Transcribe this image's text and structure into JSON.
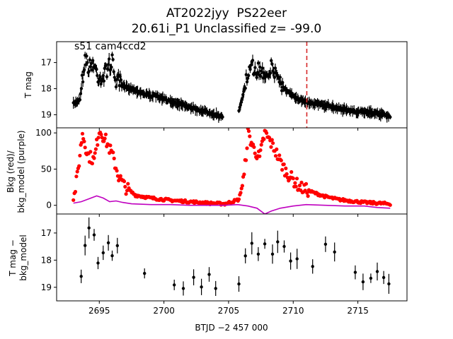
{
  "figure": {
    "title_line1": "AT2022jyy  PS22eer",
    "title_line2": "20.61i_P1 Unclassified z= -99.0",
    "annotation": "s51 cam4ccd2",
    "xlabel": "BTJD −2 457 000",
    "xticks": [
      2695,
      2700,
      2705,
      2710,
      2715
    ],
    "xlim": [
      2691.7,
      2718.8
    ]
  },
  "colors": {
    "black": "#000000",
    "red": "#ff0000",
    "purple": "#bf00bf",
    "marker_line": "#d62728"
  },
  "chart_data": [
    {
      "type": "scatter",
      "name": "tmag",
      "ylabel": "T mag",
      "ylim": [
        19.5,
        16.2
      ],
      "yticks": [
        17,
        18,
        19
      ],
      "marker_x": 2711.05,
      "gap": [
        2704.8,
        2705.7
      ],
      "series": [
        {
          "color": "#000000",
          "points": [
            [
              2693.0,
              18.6
            ],
            [
              2693.5,
              18.4
            ],
            [
              2693.9,
              16.8
            ],
            [
              2694.2,
              17.2
            ],
            [
              2694.5,
              17.0
            ],
            [
              2694.9,
              17.5
            ],
            [
              2695.3,
              17.6
            ],
            [
              2695.7,
              17.1
            ],
            [
              2696.0,
              17.0
            ],
            [
              2696.3,
              17.7
            ],
            [
              2696.8,
              17.9
            ],
            [
              2697.5,
              18.0
            ],
            [
              2698.5,
              18.2
            ],
            [
              2699.5,
              18.3
            ],
            [
              2700.5,
              18.5
            ],
            [
              2701.5,
              18.6
            ],
            [
              2702.5,
              18.8
            ],
            [
              2703.5,
              18.9
            ],
            [
              2704.6,
              19.1
            ],
            [
              2705.8,
              18.9
            ],
            [
              2706.3,
              17.8
            ],
            [
              2706.8,
              17.2
            ],
            [
              2707.3,
              17.3
            ],
            [
              2707.8,
              17.4
            ],
            [
              2708.3,
              17.2
            ],
            [
              2708.8,
              17.5
            ],
            [
              2709.3,
              18.0
            ],
            [
              2710.0,
              18.3
            ],
            [
              2711.0,
              18.5
            ],
            [
              2712.0,
              18.6
            ],
            [
              2713.0,
              18.7
            ],
            [
              2714.0,
              18.8
            ],
            [
              2715.0,
              18.9
            ],
            [
              2716.0,
              18.9
            ],
            [
              2717.0,
              19.0
            ],
            [
              2717.5,
              19.1
            ]
          ]
        }
      ]
    },
    {
      "type": "scatter",
      "name": "background",
      "ylabel_line1": "Bkg (red)/",
      "ylabel_line2": "bkg_model (purple)",
      "ylim": [
        -12,
        107
      ],
      "yticks": [
        0,
        50,
        100
      ],
      "series": [
        {
          "color": "#ff0000",
          "points": [
            [
              2693.0,
              8
            ],
            [
              2693.3,
              40
            ],
            [
              2693.7,
              100
            ],
            [
              2694.1,
              70
            ],
            [
              2694.6,
              62
            ],
            [
              2695.0,
              105
            ],
            [
              2695.5,
              90
            ],
            [
              2696.0,
              70
            ],
            [
              2696.5,
              40
            ],
            [
              2697.0,
              25
            ],
            [
              2697.8,
              14
            ],
            [
              2699.0,
              10
            ],
            [
              2700.5,
              7
            ],
            [
              2702.0,
              5
            ],
            [
              2703.5,
              3
            ],
            [
              2704.7,
              2
            ],
            [
              2705.8,
              8
            ],
            [
              2706.2,
              40
            ],
            [
              2706.5,
              100
            ],
            [
              2706.9,
              80
            ],
            [
              2707.4,
              65
            ],
            [
              2707.8,
              100
            ],
            [
              2708.5,
              80
            ],
            [
              2709.0,
              60
            ],
            [
              2709.5,
              45
            ],
            [
              2710.0,
              35
            ],
            [
              2710.5,
              25
            ],
            [
              2711.5,
              18
            ],
            [
              2712.5,
              12
            ],
            [
              2713.5,
              8
            ],
            [
              2714.5,
              6
            ],
            [
              2715.5,
              4
            ],
            [
              2716.5,
              3
            ],
            [
              2717.5,
              2
            ]
          ]
        },
        {
          "color": "#bf00bf",
          "points": [
            [
              2693.0,
              3
            ],
            [
              2693.6,
              5
            ],
            [
              2694.2,
              9
            ],
            [
              2694.8,
              13
            ],
            [
              2695.3,
              10
            ],
            [
              2695.8,
              5
            ],
            [
              2696.3,
              6
            ],
            [
              2696.8,
              4
            ],
            [
              2697.5,
              2
            ],
            [
              2699.0,
              1
            ],
            [
              2700.5,
              1
            ],
            [
              2702.0,
              0
            ],
            [
              2703.5,
              0
            ],
            [
              2704.7,
              0
            ],
            [
              2705.7,
              1
            ],
            [
              2706.5,
              -1
            ],
            [
              2707.2,
              -4
            ],
            [
              2707.8,
              -12
            ],
            [
              2708.3,
              -8
            ],
            [
              2709.0,
              -4
            ],
            [
              2710.0,
              -1
            ],
            [
              2711.0,
              1
            ],
            [
              2712.5,
              0
            ],
            [
              2714.0,
              -1
            ],
            [
              2715.5,
              -1
            ],
            [
              2716.5,
              -3
            ],
            [
              2717.5,
              -4
            ]
          ]
        }
      ]
    },
    {
      "type": "scatter",
      "name": "tmag_minus_bkg",
      "ylabel_line1": "T mag −",
      "ylabel_line2": "bkg_model",
      "ylim": [
        19.5,
        16.3
      ],
      "yticks": [
        17,
        18,
        19
      ],
      "series": [
        {
          "color": "#000000",
          "points": [
            [
              2693.6,
              18.6
            ],
            [
              2693.9,
              17.5
            ],
            [
              2694.2,
              16.8
            ],
            [
              2694.6,
              17.2
            ],
            [
              2694.9,
              18.0
            ],
            [
              2695.3,
              17.7
            ],
            [
              2695.7,
              17.3
            ],
            [
              2696.0,
              17.9
            ],
            [
              2696.4,
              17.5
            ],
            [
              2698.5,
              18.4
            ],
            [
              2700.8,
              18.8
            ],
            [
              2701.5,
              18.9
            ],
            [
              2702.3,
              18.6
            ],
            [
              2702.9,
              19.0
            ],
            [
              2703.5,
              18.7
            ],
            [
              2704.0,
              18.9
            ],
            [
              2705.8,
              18.8
            ],
            [
              2706.3,
              18.0
            ],
            [
              2706.8,
              17.4
            ],
            [
              2707.3,
              17.8
            ],
            [
              2707.8,
              17.5
            ],
            [
              2708.4,
              17.8
            ],
            [
              2708.8,
              17.4
            ],
            [
              2709.3,
              17.6
            ],
            [
              2709.8,
              17.9
            ],
            [
              2710.3,
              17.8
            ],
            [
              2711.5,
              18.1
            ],
            [
              2712.5,
              17.5
            ],
            [
              2713.2,
              17.8
            ],
            [
              2714.8,
              18.4
            ],
            [
              2715.4,
              18.7
            ],
            [
              2716.0,
              18.5
            ],
            [
              2716.5,
              18.3
            ],
            [
              2717.0,
              18.6
            ],
            [
              2717.4,
              18.9
            ]
          ]
        }
      ]
    }
  ]
}
